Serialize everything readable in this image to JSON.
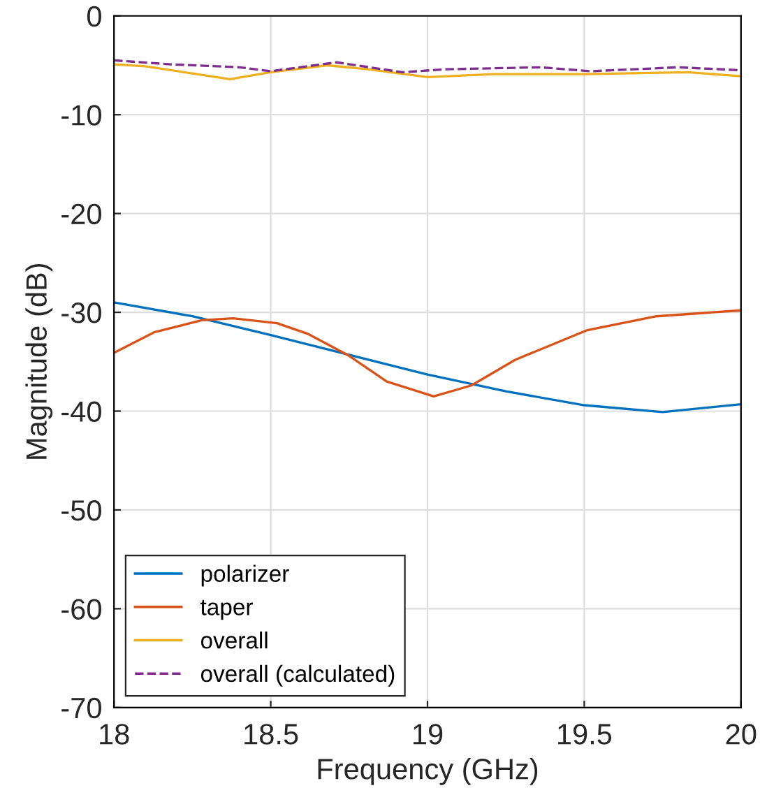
{
  "chart_data": {
    "type": "line",
    "xlabel": "Frequency (GHz)",
    "ylabel": "Magnitude (dB)",
    "xlim": [
      18,
      20
    ],
    "ylim": [
      -70,
      0
    ],
    "xticks": [
      18,
      18.5,
      19,
      19.5,
      20
    ],
    "yticks": [
      -70,
      -60,
      -50,
      -40,
      -30,
      -20,
      -10,
      0
    ],
    "grid": true,
    "legend": "bottom left",
    "series": [
      {
        "name": "polarizer",
        "color": "#0072bd",
        "line_style": "solid",
        "x": [
          18,
          18.25,
          18.5,
          18.75,
          19,
          19.25,
          19.5,
          19.75,
          20
        ],
        "values": [
          -29.0,
          -30.4,
          -32.3,
          -34.3,
          -36.3,
          -38.0,
          -39.4,
          -40.1,
          -39.3
        ]
      },
      {
        "name": "taper",
        "color": "#d95319",
        "line_style": "solid",
        "x": [
          18,
          18.13,
          18.28,
          18.38,
          18.52,
          18.62,
          18.75,
          18.87,
          19.02,
          19.14,
          19.28,
          19.51,
          19.73,
          20
        ],
        "values": [
          -34.1,
          -32.0,
          -30.8,
          -30.6,
          -31.1,
          -32.2,
          -34.4,
          -37.0,
          -38.5,
          -37.4,
          -34.8,
          -31.8,
          -30.4,
          -29.8
        ]
      },
      {
        "name": "overall",
        "color": "#edb120",
        "line_style": "solid",
        "x": [
          18,
          18.1,
          18.37,
          18.5,
          18.68,
          18.81,
          19,
          19.21,
          19.5,
          19.83,
          20
        ],
        "values": [
          -4.9,
          -5.1,
          -6.4,
          -5.7,
          -5.0,
          -5.4,
          -6.2,
          -5.9,
          -5.9,
          -5.7,
          -6.1
        ]
      },
      {
        "name": "overall (calculated)",
        "color": "#7e2f8e",
        "line_style": "dashed",
        "x": [
          18,
          18.18,
          18.4,
          18.5,
          18.71,
          18.92,
          19.06,
          19.36,
          19.52,
          19.8,
          20
        ],
        "values": [
          -4.5,
          -4.9,
          -5.2,
          -5.6,
          -4.7,
          -5.7,
          -5.4,
          -5.2,
          -5.6,
          -5.2,
          -5.5
        ]
      }
    ]
  }
}
